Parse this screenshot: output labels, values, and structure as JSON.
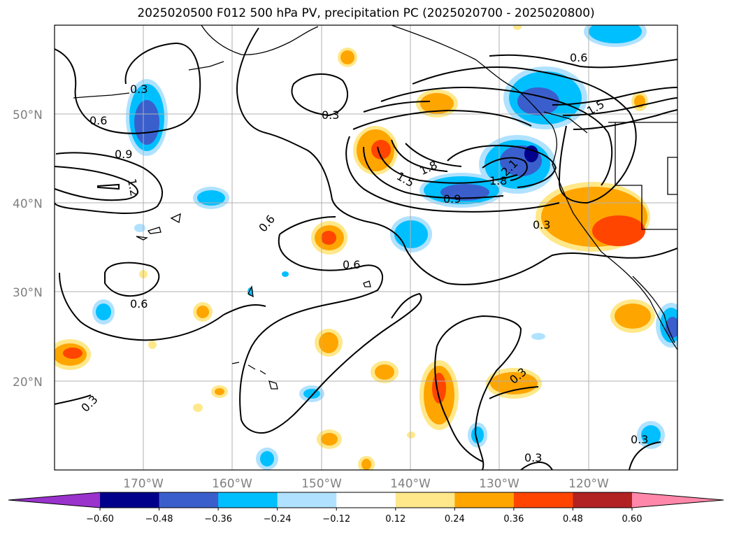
{
  "title": "2025020500 F012 500 hPa PV, precipitation PC (2025020700 - 2025020800)",
  "map": {
    "lat_ticks": [
      "50°N",
      "40°N",
      "30°N",
      "20°N"
    ],
    "lon_ticks": [
      "170°W",
      "160°W",
      "150°W",
      "140°W",
      "130°W",
      "120°W"
    ],
    "extent": {
      "lon": [
        -180,
        -110
      ],
      "lat": [
        10,
        60
      ]
    },
    "grid": true,
    "gridline_color": "#b0b0b0"
  },
  "contour_labels": [
    "0.3",
    "0.6",
    "0.9",
    "1.2",
    "1.5",
    "1.8",
    "2.1"
  ],
  "colorbar": {
    "ticks": [
      "−0.60",
      "−0.48",
      "−0.36",
      "−0.24",
      "−0.12",
      "0.12",
      "0.24",
      "0.36",
      "0.48",
      "0.60"
    ],
    "colors": [
      "#9933cc",
      "#00008b",
      "#3a5fcd",
      "#00bfff",
      "#b0e2ff",
      "#ffffff",
      "#ffe88a",
      "#ffa500",
      "#ff4500",
      "#b22222",
      "#ff88aa"
    ],
    "extend": "both"
  }
}
